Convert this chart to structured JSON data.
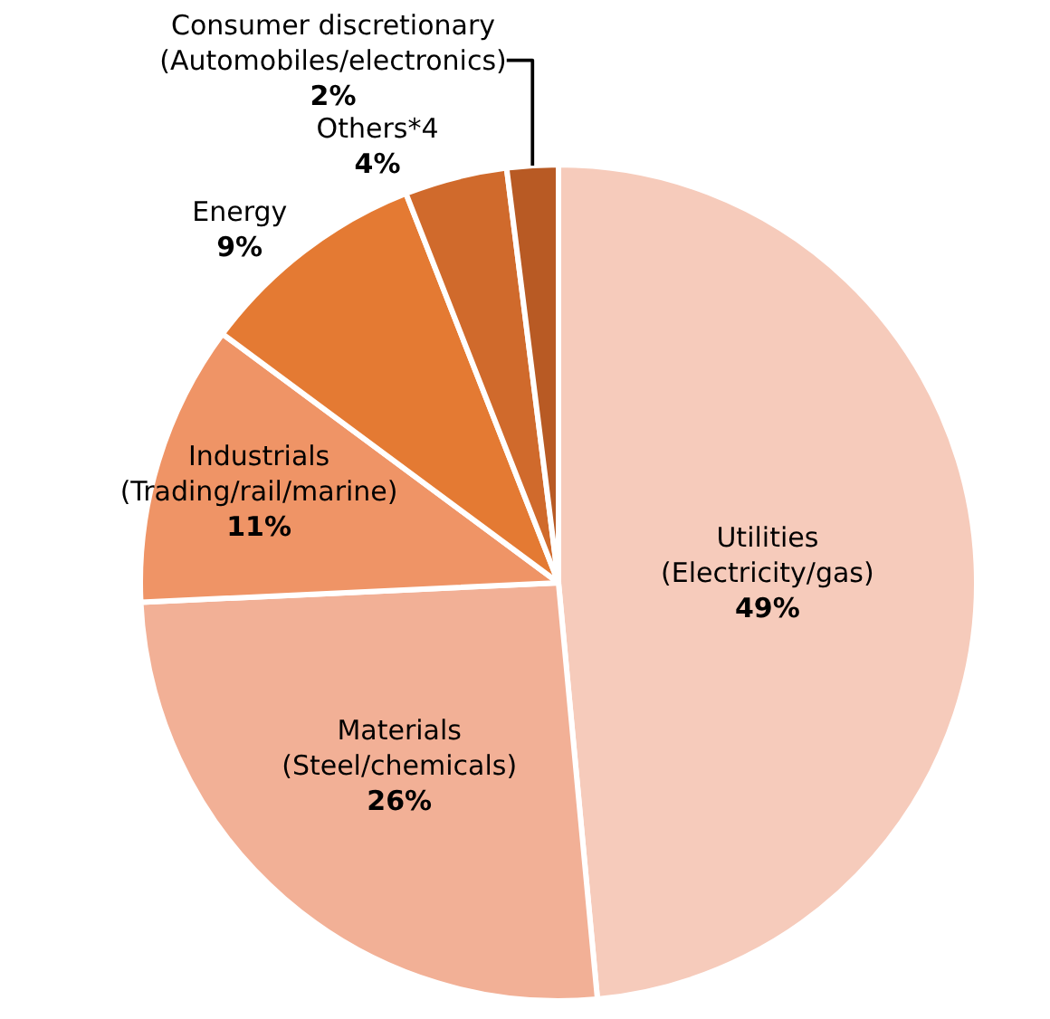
{
  "chart_data": {
    "type": "pie",
    "categories": [
      "Utilities\n(Electricity/gas)",
      "Materials\n(Steel/chemicals)",
      "Industrials\n(Trading/rail/marine)",
      "Energy",
      "Others*4",
      "Consumer discretionary\n(Automobiles/electronics)"
    ],
    "values": [
      49,
      26,
      11,
      9,
      4,
      2
    ],
    "value_labels": [
      "49%",
      "26%",
      "11%",
      "9%",
      "4%",
      "2%"
    ],
    "colors": [
      "#f6cbbb",
      "#f2b096",
      "#ef9466",
      "#e47a33",
      "#d06a2c",
      "#b85a24"
    ]
  }
}
